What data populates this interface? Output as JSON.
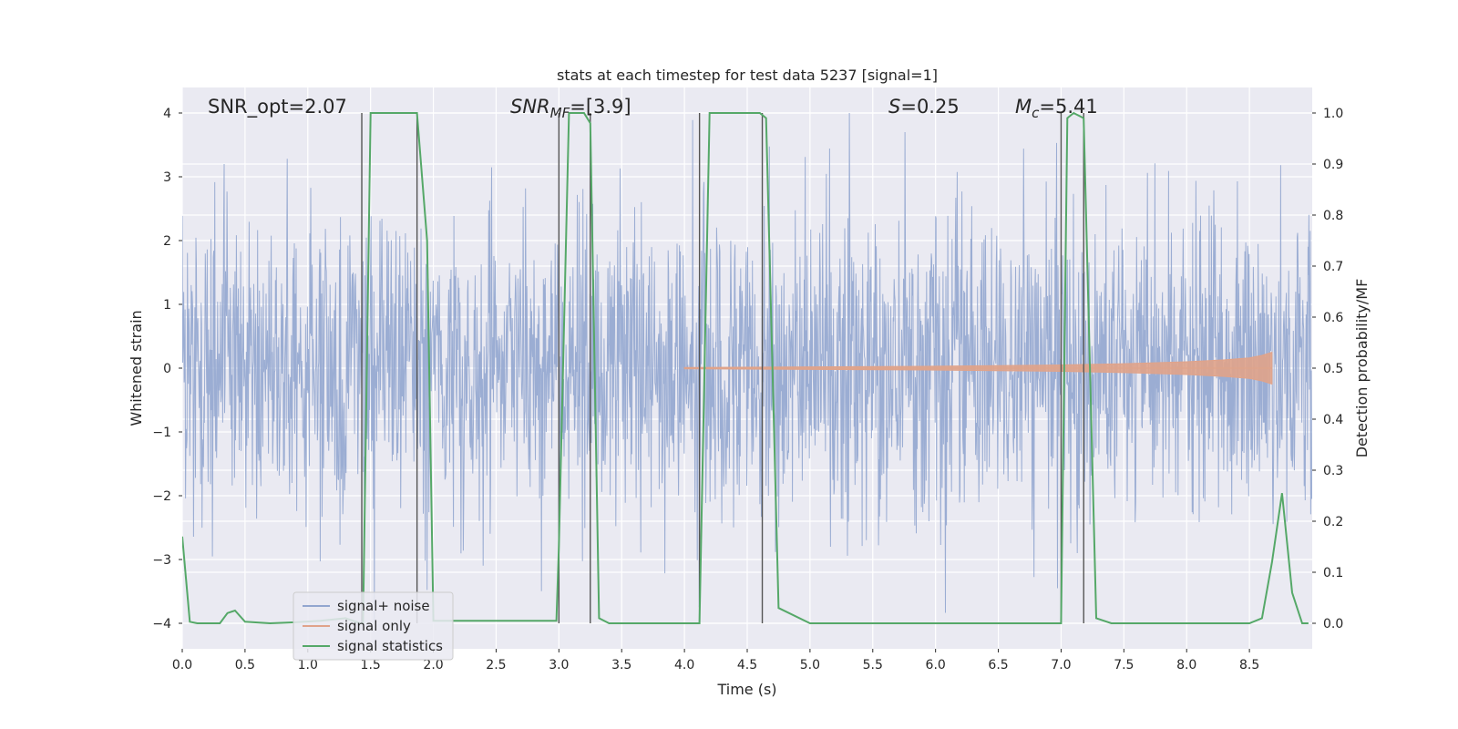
{
  "chart_data": {
    "type": "line",
    "title": "stats at each timestep for test data 5237 [signal=1]",
    "xlabel": "Time (s)",
    "ylabel": "Whitened strain",
    "ylabel_right": "Detection probability/MF",
    "xlim": [
      0.0,
      9.0
    ],
    "ylim": [
      -4.4,
      4.4
    ],
    "ylim_right": [
      -0.05,
      1.05
    ],
    "x_ticks": [
      "0.0",
      "0.5",
      "1.0",
      "1.5",
      "2.0",
      "2.5",
      "3.0",
      "3.5",
      "4.0",
      "4.5",
      "5.0",
      "5.5",
      "6.0",
      "6.5",
      "7.0",
      "7.5",
      "8.0",
      "8.5"
    ],
    "y_ticks": [
      "4",
      "3",
      "2",
      "1",
      "0",
      "−1",
      "−2",
      "−3",
      "−4"
    ],
    "y_ticks_right": [
      "1.0",
      "0.9",
      "0.8",
      "0.7",
      "0.6",
      "0.5",
      "0.4",
      "0.3",
      "0.2",
      "0.1",
      "0.0"
    ],
    "grid": true,
    "legend_position": "lower-left",
    "annotations": {
      "snr_opt": "SNR_opt=2.07",
      "snr_mf_main": "SNR",
      "snr_mf_sub": "MF",
      "snr_mf_value": "=[3.9]",
      "s_main": "S",
      "s_value": "=0.25",
      "mc_main": "M",
      "mc_sub": "c",
      "mc_value": "=5.41"
    },
    "detection_intervals": [
      [
        1.43,
        1.87
      ],
      [
        3.0,
        3.25
      ],
      [
        4.12,
        4.62
      ],
      [
        7.0,
        7.18
      ]
    ],
    "series": [
      {
        "name": "signal+ noise",
        "color": "#92a6cf",
        "description": "whitened strain noise, amplitude approx ±4"
      },
      {
        "name": "signal only",
        "color": "#e0a38a",
        "x": [
          4.0,
          5.0,
          6.0,
          7.0,
          7.5,
          8.0,
          8.3,
          8.5,
          8.6,
          8.68
        ],
        "envelope": [
          0.01,
          0.02,
          0.03,
          0.05,
          0.07,
          0.1,
          0.13,
          0.16,
          0.2,
          0.25
        ]
      },
      {
        "name": "signal statistics",
        "color": "#55a868",
        "x": [
          0.0,
          0.06,
          0.12,
          0.3,
          0.36,
          0.42,
          0.5,
          0.7,
          0.9,
          1.1,
          1.3,
          1.42,
          1.44,
          1.5,
          1.87,
          1.95,
          2.0,
          2.5,
          2.98,
          3.0,
          3.08,
          3.2,
          3.25,
          3.32,
          3.4,
          3.7,
          4.08,
          4.12,
          4.2,
          4.6,
          4.65,
          4.75,
          5.0,
          6.0,
          6.98,
          7.0,
          7.05,
          7.1,
          7.18,
          7.28,
          7.4,
          8.0,
          8.5,
          8.6,
          8.68,
          8.76,
          8.84,
          8.92,
          8.97
        ],
        "values": [
          0.17,
          0.003,
          0.0,
          0.0,
          0.02,
          0.025,
          0.003,
          0.0,
          0.002,
          0.005,
          0.01,
          0.0,
          0.0,
          1.0,
          1.0,
          0.75,
          0.005,
          0.005,
          0.005,
          0.15,
          1.0,
          1.0,
          0.98,
          0.01,
          0.0,
          0.0,
          0.0,
          0.0,
          1.0,
          1.0,
          0.99,
          0.03,
          0.0,
          0.0,
          0.0,
          0.0,
          0.99,
          1.0,
          0.99,
          0.01,
          0.0,
          0.0,
          0.0,
          0.01,
          0.12,
          0.255,
          0.06,
          0.0,
          0.0
        ]
      }
    ]
  }
}
